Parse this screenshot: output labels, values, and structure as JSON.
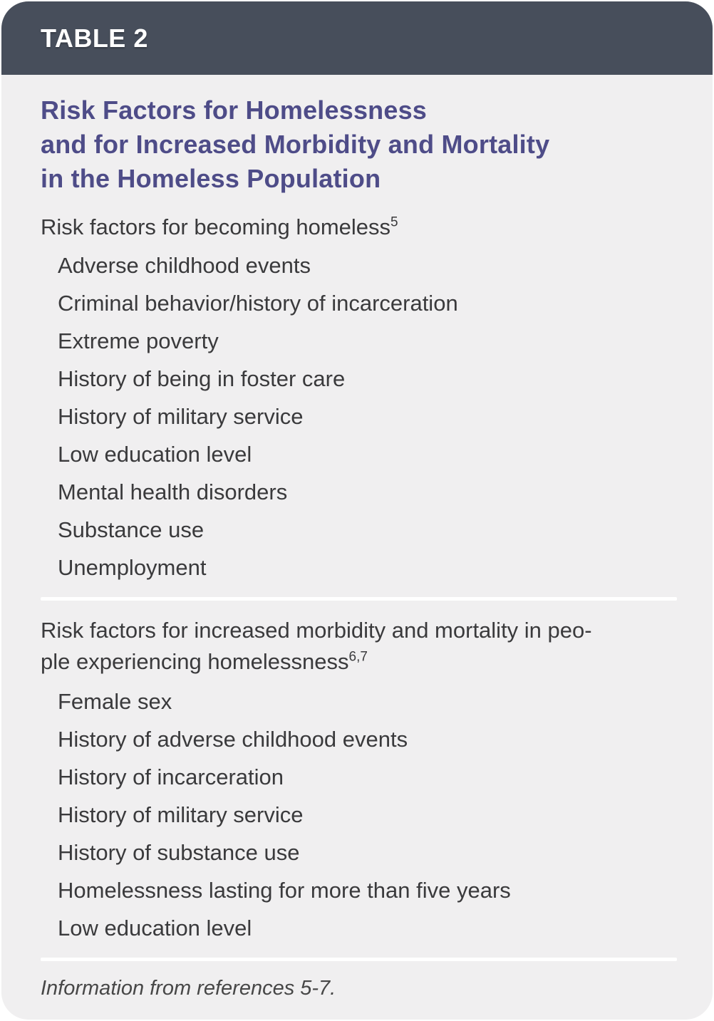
{
  "header": {
    "table_number_label": "TABLE 2"
  },
  "title": {
    "lines": [
      "Risk Factors for Homelessness",
      "and for Increased Morbidity and Mortality",
      "in the Homeless Population"
    ]
  },
  "sections": [
    {
      "heading": "Risk factors for becoming homeless",
      "heading_sup": "5",
      "items": [
        "Adverse childhood events",
        "Criminal behavior/history of incarceration",
        "Extreme poverty",
        "History of being in foster care",
        "History of military service",
        "Low education level",
        "Mental health disorders",
        "Substance use",
        "Unemployment"
      ]
    },
    {
      "heading_line1": "Risk factors for increased morbidity and mortality in peo-",
      "heading_line2": "ple experiencing homelessness",
      "heading_sup": "6,7",
      "items": [
        "Female sex",
        "History of adverse childhood events",
        "History of incarceration",
        "History of military service",
        "History of substance use",
        "Homelessness lasting for more than five years",
        "Low education level"
      ]
    }
  ],
  "footer": {
    "note": "Information from references 5-7."
  },
  "colors": {
    "header_bg": "#474e5b",
    "body_bg": "#f0eff0",
    "title_text": "#4e4c88",
    "body_text": "#3a3a3c",
    "divider": "#ffffff",
    "header_text": "#ffffff"
  }
}
